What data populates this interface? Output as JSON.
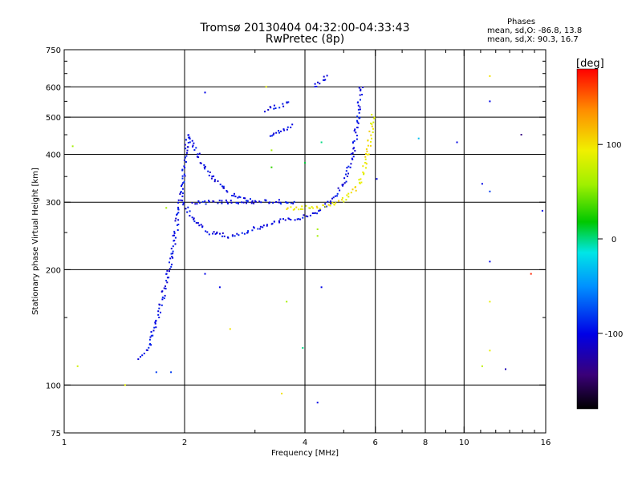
{
  "header": {
    "title_line_1": "Tromsø 20130404 04:32:00-04:33:43",
    "title_line_2": "RwPretec (8p)"
  },
  "stats": {
    "heading": "Phases",
    "o_line": "mean, sd,O: -86.8, 13.8",
    "x_line": "mean, sd,X:  90.3, 16.7"
  },
  "colorbar": {
    "label": "[deg]",
    "ticks": [
      {
        "value": 100,
        "label": "100"
      },
      {
        "value": 0,
        "label": "0"
      },
      {
        "value": -100,
        "label": "-100"
      }
    ],
    "range": [
      -180,
      180
    ]
  },
  "chart_data": {
    "type": "scatter",
    "xlabel": "Frequency [MHz]",
    "ylabel": "Stationary phase Virtual Height [km]",
    "xscale": "log",
    "yscale": "log",
    "xlim": [
      1,
      16
    ],
    "ylim": [
      75,
      750
    ],
    "grid": true,
    "x_ticks": [
      {
        "value": 1,
        "label": "1"
      },
      {
        "value": 2,
        "label": "2"
      },
      {
        "value": 4,
        "label": "4"
      },
      {
        "value": 6,
        "label": "6"
      },
      {
        "value": 8,
        "label": "8"
      },
      {
        "value": 10,
        "label": "10"
      },
      {
        "value": 16,
        "label": "16"
      }
    ],
    "x_grid": [
      2,
      4,
      6,
      8,
      10
    ],
    "y_ticks": [
      {
        "value": 75,
        "label": "75"
      },
      {
        "value": 100,
        "label": "100"
      },
      {
        "value": 200,
        "label": "200"
      },
      {
        "value": 300,
        "label": "300"
      },
      {
        "value": 400,
        "label": "400"
      },
      {
        "value": 500,
        "label": "500"
      },
      {
        "value": 600,
        "label": "600"
      },
      {
        "value": 750,
        "label": "750"
      }
    ],
    "y_grid": [
      100,
      200,
      300,
      400,
      500,
      600
    ],
    "color_meaning": "phase [deg]",
    "traces": [
      {
        "phase": -100,
        "x": [
          1.55,
          1.62,
          1.68,
          1.74,
          1.8,
          1.85,
          1.9,
          1.94,
          1.97,
          2.0,
          2.02,
          2.05
        ],
        "y": [
          118,
          125,
          140,
          160,
          185,
          215,
          250,
          290,
          330,
          380,
          420,
          450
        ]
      },
      {
        "phase": -100,
        "x": [
          1.97,
          2.1,
          2.3,
          2.6,
          2.9,
          3.2,
          3.5,
          3.8,
          4.1,
          4.4,
          4.7,
          5.0,
          5.2,
          5.35,
          5.45,
          5.55
        ],
        "y": [
          300,
          270,
          250,
          245,
          252,
          262,
          268,
          272,
          278,
          288,
          305,
          335,
          380,
          440,
          520,
          610
        ]
      },
      {
        "phase": -100,
        "x": [
          2.05,
          2.2,
          2.4,
          2.6,
          2.8,
          3.0
        ],
        "y": [
          450,
          380,
          340,
          315,
          305,
          300
        ]
      },
      {
        "phase": -100,
        "x": [
          2.1,
          2.4,
          2.7,
          3.0,
          3.3,
          3.6,
          3.8
        ],
        "y": [
          300,
          300,
          300,
          300,
          302,
          300,
          300
        ]
      },
      {
        "phase": -100,
        "x": [
          3.2,
          3.45,
          3.7
        ],
        "y": [
          520,
          535,
          550
        ]
      },
      {
        "phase": -100,
        "x": [
          3.25,
          3.5,
          3.75
        ],
        "y": [
          445,
          460,
          475
        ]
      },
      {
        "phase": -100,
        "x": [
          4.2,
          4.4,
          4.55
        ],
        "y": [
          600,
          620,
          650
        ]
      },
      {
        "phase": 95,
        "x": [
          3.6,
          3.8,
          4.3,
          4.7,
          5.0,
          5.3,
          5.5,
          5.65,
          5.75,
          5.85,
          5.95
        ],
        "y": [
          290,
          290,
          290,
          297,
          305,
          320,
          340,
          370,
          410,
          460,
          510
        ]
      }
    ],
    "points": [
      {
        "x": 1.05,
        "y": 420,
        "phase": 60
      },
      {
        "x": 1.08,
        "y": 112,
        "phase": 80
      },
      {
        "x": 1.42,
        "y": 100,
        "phase": 90
      },
      {
        "x": 1.7,
        "y": 108,
        "phase": -80
      },
      {
        "x": 1.85,
        "y": 108,
        "phase": -80
      },
      {
        "x": 1.8,
        "y": 290,
        "phase": 60
      },
      {
        "x": 2.25,
        "y": 580,
        "phase": -100
      },
      {
        "x": 2.25,
        "y": 195,
        "phase": -100
      },
      {
        "x": 2.45,
        "y": 180,
        "phase": -100
      },
      {
        "x": 2.6,
        "y": 140,
        "phase": 100
      },
      {
        "x": 3.2,
        "y": 600,
        "phase": 90
      },
      {
        "x": 3.3,
        "y": 410,
        "phase": 60
      },
      {
        "x": 3.3,
        "y": 370,
        "phase": 30
      },
      {
        "x": 3.5,
        "y": 95,
        "phase": 100
      },
      {
        "x": 3.6,
        "y": 165,
        "phase": 60
      },
      {
        "x": 3.95,
        "y": 125,
        "phase": 0
      },
      {
        "x": 4.0,
        "y": 380,
        "phase": 10
      },
      {
        "x": 4.3,
        "y": 90,
        "phase": -100
      },
      {
        "x": 4.3,
        "y": 255,
        "phase": 60
      },
      {
        "x": 4.3,
        "y": 245,
        "phase": 60
      },
      {
        "x": 4.4,
        "y": 430,
        "phase": 0
      },
      {
        "x": 4.4,
        "y": 180,
        "phase": -100
      },
      {
        "x": 6.05,
        "y": 345,
        "phase": -100
      },
      {
        "x": 7.7,
        "y": 440,
        "phase": -30
      },
      {
        "x": 9.6,
        "y": 430,
        "phase": -100
      },
      {
        "x": 11.1,
        "y": 335,
        "phase": -100
      },
      {
        "x": 11.1,
        "y": 112,
        "phase": 70
      },
      {
        "x": 11.6,
        "y": 640,
        "phase": 100
      },
      {
        "x": 11.6,
        "y": 550,
        "phase": -100
      },
      {
        "x": 11.6,
        "y": 320,
        "phase": -80
      },
      {
        "x": 11.6,
        "y": 210,
        "phase": -100
      },
      {
        "x": 11.6,
        "y": 165,
        "phase": 90
      },
      {
        "x": 11.6,
        "y": 123,
        "phase": 90
      },
      {
        "x": 12.7,
        "y": 110,
        "phase": -120
      },
      {
        "x": 13.9,
        "y": 450,
        "phase": -140
      },
      {
        "x": 14.7,
        "y": 195,
        "phase": 170
      },
      {
        "x": 15.7,
        "y": 285,
        "phase": -100
      }
    ]
  }
}
